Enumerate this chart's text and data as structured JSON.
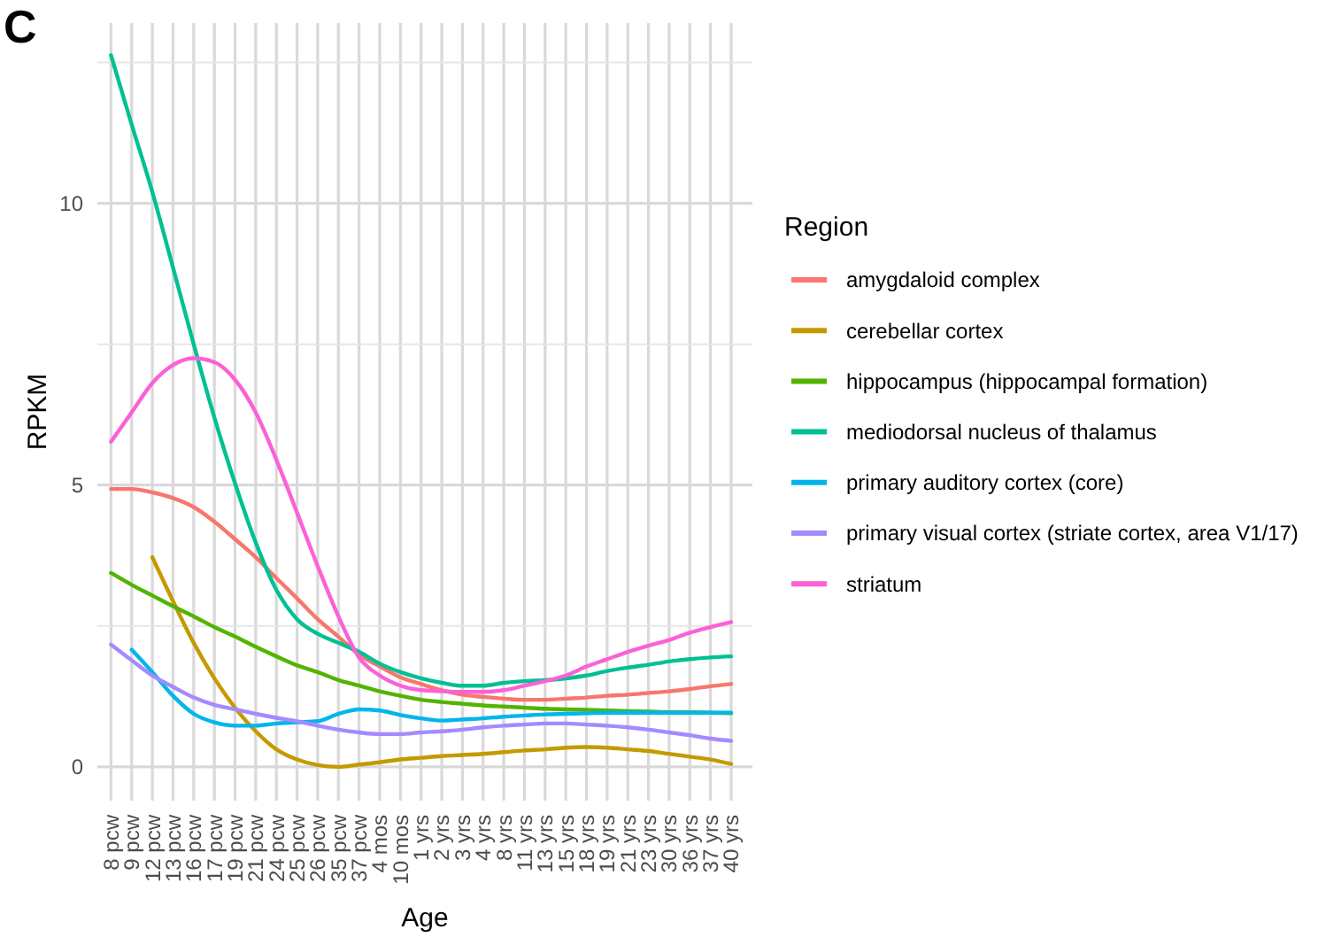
{
  "chart_data": {
    "type": "line",
    "xlabel": "Age",
    "ylabel": "RPKM",
    "legend_title": "Region",
    "legend": "right",
    "grid": true,
    "line_style": "solid",
    "marker": "none",
    "annotations": [
      "C"
    ],
    "categories": [
      "8 pcw",
      "9 pcw",
      "12 pcw",
      "13 pcw",
      "16 pcw",
      "17 pcw",
      "19 pcw",
      "21 pcw",
      "24 pcw",
      "25 pcw",
      "26 pcw",
      "35 pcw",
      "37 pcw",
      "4 mos",
      "10 mos",
      "1 yrs",
      "2 yrs",
      "3 yrs",
      "4 yrs",
      "8 yrs",
      "11 yrs",
      "13 yrs",
      "15 yrs",
      "18 yrs",
      "19 yrs",
      "21 yrs",
      "23 yrs",
      "30 yrs",
      "36 yrs",
      "37 yrs",
      "40 yrs"
    ],
    "ylim": [
      -0.6,
      13.2
    ],
    "yticks": [
      0,
      {
        "value": 2.5,
        "label": null
      },
      5,
      {
        "value": 7.5,
        "label": null
      },
      10,
      {
        "value": 12.5,
        "label": null
      }
    ],
    "series": [
      {
        "name": "amygdaloid complex",
        "color": "#f8766d",
        "values": [
          4.93,
          4.93,
          4.87,
          4.77,
          4.61,
          4.35,
          4.04,
          3.72,
          3.35,
          2.99,
          2.62,
          2.31,
          1.99,
          1.78,
          1.59,
          1.47,
          1.36,
          1.28,
          1.24,
          1.21,
          1.19,
          1.19,
          1.21,
          1.23,
          1.26,
          1.28,
          1.31,
          1.34,
          1.38,
          1.43,
          1.47
        ]
      },
      {
        "name": "cerebellar cortex",
        "color": "#c49a00",
        "values": [
          null,
          null,
          3.72,
          2.94,
          2.2,
          1.57,
          1.05,
          0.63,
          0.31,
          0.13,
          0.03,
          0.0,
          0.04,
          0.08,
          0.13,
          0.16,
          0.19,
          0.21,
          0.23,
          0.26,
          0.29,
          0.31,
          0.34,
          0.35,
          0.34,
          0.31,
          0.28,
          0.23,
          0.18,
          0.13,
          0.05
        ]
      },
      {
        "name": "hippocampus (hippocampal formation)",
        "color": "#53b400",
        "values": [
          3.44,
          3.23,
          3.04,
          2.85,
          2.67,
          2.48,
          2.31,
          2.13,
          1.96,
          1.8,
          1.68,
          1.54,
          1.44,
          1.34,
          1.26,
          1.19,
          1.15,
          1.12,
          1.09,
          1.07,
          1.05,
          1.03,
          1.02,
          1.01,
          1.0,
          0.99,
          0.98,
          0.97,
          0.97,
          0.96,
          0.95
        ]
      },
      {
        "name": "mediodorsal nucleus of thalamus",
        "color": "#00c094",
        "values": [
          12.63,
          11.4,
          10.2,
          8.86,
          7.5,
          6.2,
          5.03,
          3.98,
          3.14,
          2.62,
          2.36,
          2.2,
          2.04,
          1.83,
          1.68,
          1.57,
          1.49,
          1.44,
          1.44,
          1.49,
          1.52,
          1.54,
          1.57,
          1.62,
          1.7,
          1.76,
          1.81,
          1.87,
          1.91,
          1.94,
          1.96
        ]
      },
      {
        "name": "primary auditory cortex (core)",
        "color": "#00b6eb",
        "values": [
          null,
          2.08,
          1.68,
          1.26,
          0.94,
          0.79,
          0.73,
          0.73,
          0.77,
          0.79,
          0.81,
          0.94,
          1.02,
          1.0,
          0.92,
          0.86,
          0.82,
          0.84,
          0.86,
          0.89,
          0.91,
          0.93,
          0.94,
          0.95,
          0.96,
          0.96,
          0.96,
          0.96,
          0.96,
          0.96,
          0.96
        ]
      },
      {
        "name": "primary visual cortex (striate cortex, area V1/17)",
        "color": "#a58aff",
        "values": [
          2.17,
          1.89,
          1.62,
          1.42,
          1.23,
          1.1,
          1.02,
          0.94,
          0.87,
          0.81,
          0.73,
          0.66,
          0.61,
          0.58,
          0.58,
          0.61,
          0.63,
          0.66,
          0.7,
          0.73,
          0.75,
          0.77,
          0.77,
          0.75,
          0.73,
          0.7,
          0.66,
          0.61,
          0.56,
          0.5,
          0.46
        ]
      },
      {
        "name": "striatum",
        "color": "#fb61d7",
        "values": [
          5.77,
          6.29,
          6.81,
          7.13,
          7.25,
          7.18,
          6.87,
          6.29,
          5.45,
          4.51,
          3.56,
          2.67,
          1.94,
          1.62,
          1.44,
          1.36,
          1.34,
          1.33,
          1.33,
          1.36,
          1.44,
          1.52,
          1.62,
          1.78,
          1.91,
          2.04,
          2.15,
          2.25,
          2.38,
          2.48,
          2.57
        ]
      }
    ]
  }
}
